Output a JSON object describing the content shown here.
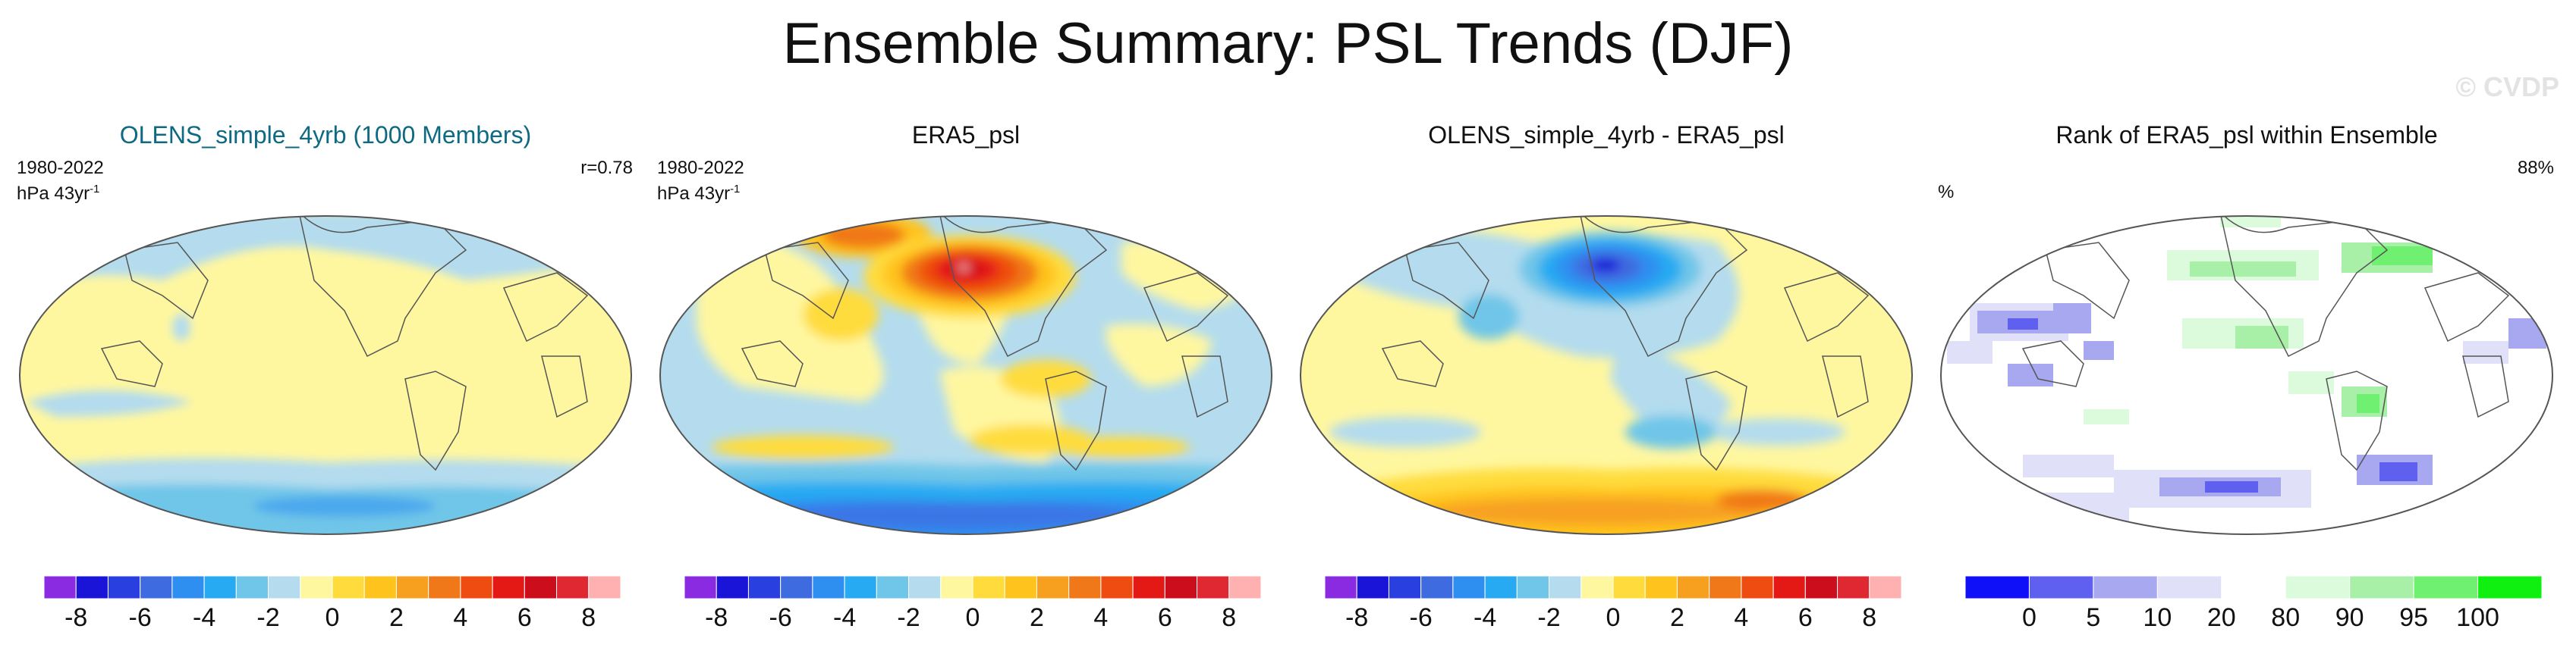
{
  "title": "Ensemble Summary: PSL Trends (DJF)",
  "watermark": "© CVDP",
  "panels": [
    {
      "title": "OLENS_simple_4yrb (1000 Members)",
      "period": "1980-2022",
      "units": "hPa 43yr",
      "units_sup": "-1",
      "corner": "r=0.78"
    },
    {
      "title": "ERA5_psl",
      "period": "1980-2022",
      "units": "hPa 43yr",
      "units_sup": "-1",
      "corner": ""
    },
    {
      "title": "OLENS_simple_4yrb - ERA5_psl",
      "period": "",
      "units": "",
      "units_sup": "",
      "corner": ""
    },
    {
      "title": "Rank of ERA5_psl within Ensemble",
      "period": "%",
      "units": "",
      "units_sup": "",
      "corner": "88%"
    }
  ],
  "colorbars": {
    "trend": {
      "colors": [
        "#8a2be2",
        "#1a14d8",
        "#2a3fe0",
        "#3f6be0",
        "#2f8ff0",
        "#28aaf2",
        "#6fc6e8",
        "#b4dcee",
        "#fff7a0",
        "#ffdc3c",
        "#ffc31e",
        "#f7a020",
        "#f07818",
        "#ee4c10",
        "#e41814",
        "#cc0e1c",
        "#e02832",
        "#ffb0b0"
      ],
      "ticks": [
        "-8",
        "-6",
        "-4",
        "-2",
        "0",
        "2",
        "4",
        "6",
        "8"
      ]
    },
    "rank": {
      "colors": [
        "#1010f8",
        "#6060f0",
        "#a8a8f0",
        "#e0e0f8",
        "#ffffff",
        "#dcfadc",
        "#a8f0a8",
        "#70f070",
        "#10f010"
      ],
      "ticks": [
        "0",
        "5",
        "10",
        "20",
        "80",
        "90",
        "95",
        "100"
      ]
    }
  }
}
